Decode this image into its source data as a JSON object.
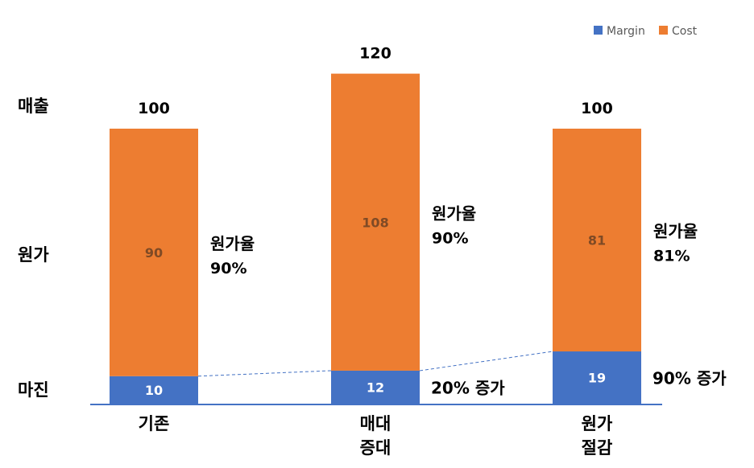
{
  "chart_data": {
    "type": "bar",
    "stacked": true,
    "categories": [
      "기존",
      "매대\n증대",
      "원가\n절감"
    ],
    "series": [
      {
        "name": "Margin",
        "values": [
          10,
          12,
          19
        ],
        "color": "#4472C4"
      },
      {
        "name": "Cost",
        "values": [
          90,
          108,
          81
        ],
        "color": "#ED7D31"
      }
    ],
    "totals": [
      100,
      120,
      100
    ],
    "cost_ratio_label": "원가율",
    "cost_ratios": [
      "90%",
      "90%",
      "81%"
    ],
    "margin_growth": [
      "",
      "20% 증가",
      "90% 증가"
    ],
    "row_labels": {
      "revenue": "매출",
      "cost": "원가",
      "margin": "마진"
    },
    "legend_position": "top-right",
    "ylim": [
      0,
      130
    ],
    "grid": false
  }
}
